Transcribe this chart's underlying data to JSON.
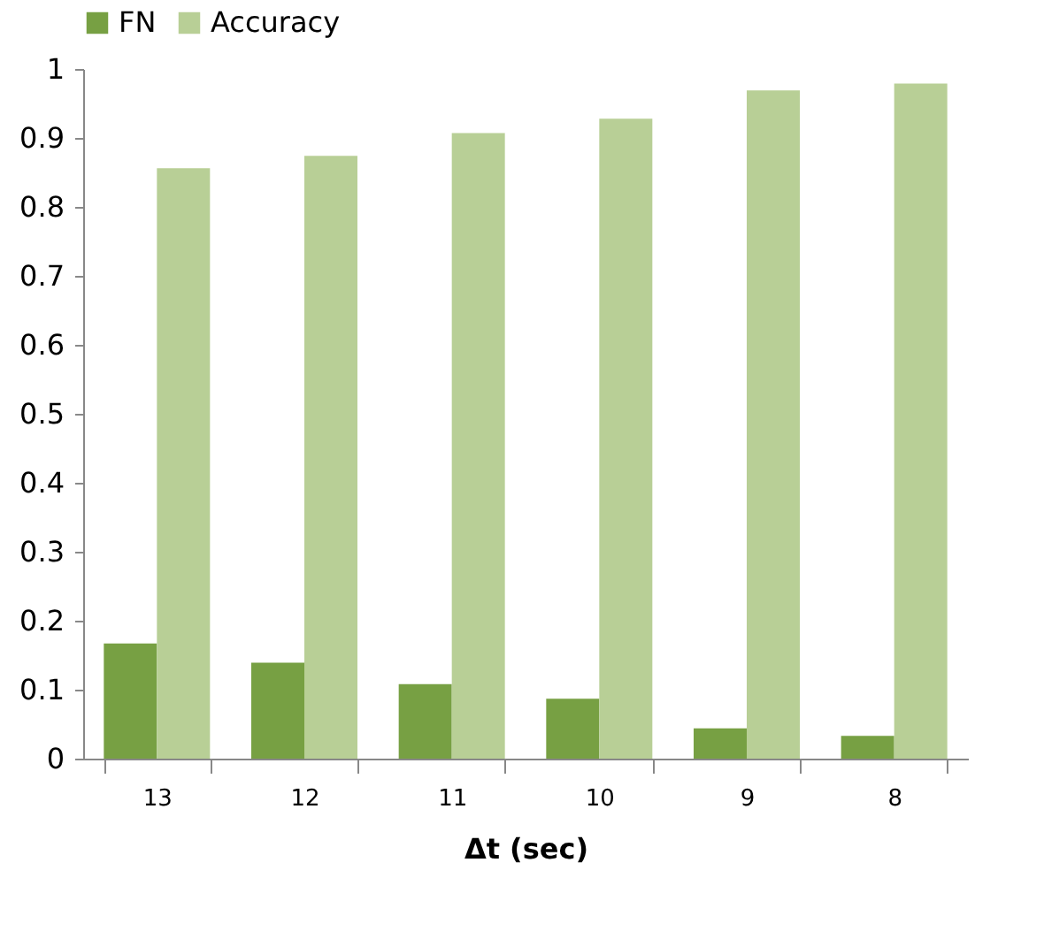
{
  "chart_data": {
    "type": "bar",
    "xlabel": "Δt (sec)",
    "categories": [
      "13",
      "12",
      "11",
      "10",
      "9",
      "8"
    ],
    "series": [
      {
        "name": "FN",
        "color": "#77a043",
        "values": [
          0.167,
          0.139,
          0.108,
          0.087,
          0.044,
          0.033
        ]
      },
      {
        "name": "Accuracy",
        "color": "#b8cf96",
        "values": [
          0.856,
          0.874,
          0.907,
          0.928,
          0.969,
          0.979
        ]
      }
    ],
    "ylim": [
      0,
      1
    ],
    "yticks": [
      0,
      0.1,
      0.2,
      0.3,
      0.4,
      0.5,
      0.6,
      0.7,
      0.8,
      0.9,
      1
    ],
    "grid": false,
    "legend": "top"
  }
}
